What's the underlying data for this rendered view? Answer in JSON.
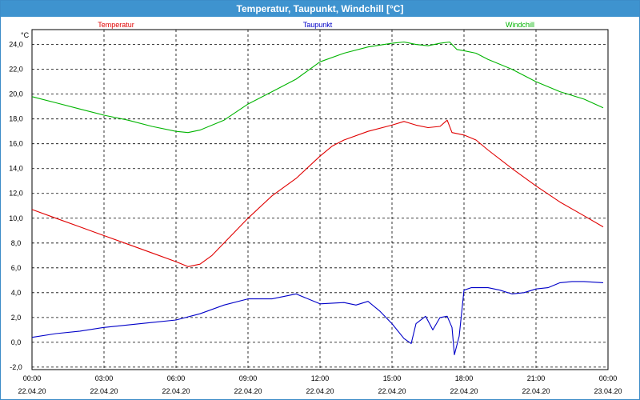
{
  "window": {
    "title": "Temperatur, Taupunkt, Windchill [°C]"
  },
  "chart_data": {
    "type": "line",
    "title": "Temperatur, Taupunkt, Windchill [°C]",
    "unit": "°C",
    "ylim": [
      -2.2,
      25.2
    ],
    "y_ticks": [
      "24,0",
      "22,0",
      "20,0",
      "18,0",
      "16,0",
      "14,0",
      "12,0",
      "10,0",
      "8,0",
      "6,0",
      "4,0",
      "2,0",
      "0,0",
      "-2,0"
    ],
    "x_ticks": [
      {
        "time": "00:00",
        "date": "22.04.20"
      },
      {
        "time": "03:00",
        "date": "22.04.20"
      },
      {
        "time": "06:00",
        "date": "22.04.20"
      },
      {
        "time": "09:00",
        "date": "22.04.20"
      },
      {
        "time": "12:00",
        "date": "22.04.20"
      },
      {
        "time": "15:00",
        "date": "22.04.20"
      },
      {
        "time": "18:00",
        "date": "22.04.20"
      },
      {
        "time": "21:00",
        "date": "22.04.20"
      },
      {
        "time": "00:00",
        "date": "23.04.20"
      }
    ],
    "grid": true,
    "legend_position": "top",
    "series": [
      {
        "name": "Temperatur",
        "color": "#e00000",
        "points": [
          [
            0,
            10.7
          ],
          [
            1,
            10.0
          ],
          [
            2,
            9.3
          ],
          [
            3,
            8.6
          ],
          [
            4,
            7.9
          ],
          [
            5,
            7.2
          ],
          [
            6,
            6.5
          ],
          [
            6.5,
            6.1
          ],
          [
            7,
            6.3
          ],
          [
            7.5,
            7.0
          ],
          [
            8,
            8.0
          ],
          [
            9,
            10.0
          ],
          [
            10,
            11.8
          ],
          [
            11,
            13.2
          ],
          [
            12,
            15.0
          ],
          [
            12.5,
            15.8
          ],
          [
            13,
            16.3
          ],
          [
            14,
            17.0
          ],
          [
            15,
            17.5
          ],
          [
            15.5,
            17.8
          ],
          [
            16,
            17.5
          ],
          [
            16.5,
            17.3
          ],
          [
            17,
            17.4
          ],
          [
            17.3,
            17.9
          ],
          [
            17.5,
            16.9
          ],
          [
            18,
            16.7
          ],
          [
            18.5,
            16.3
          ],
          [
            19,
            15.5
          ],
          [
            20,
            14.0
          ],
          [
            21,
            12.6
          ],
          [
            22,
            11.3
          ],
          [
            23,
            10.2
          ],
          [
            23.8,
            9.3
          ]
        ]
      },
      {
        "name": "Taupunkt",
        "color": "#0000c8",
        "points": [
          [
            0,
            0.4
          ],
          [
            1,
            0.7
          ],
          [
            2,
            0.9
          ],
          [
            3,
            1.2
          ],
          [
            4,
            1.4
          ],
          [
            5,
            1.6
          ],
          [
            6,
            1.8
          ],
          [
            7,
            2.3
          ],
          [
            8,
            3.0
          ],
          [
            9,
            3.5
          ],
          [
            10,
            3.5
          ],
          [
            11,
            3.9
          ],
          [
            12,
            3.1
          ],
          [
            13,
            3.2
          ],
          [
            13.5,
            3.0
          ],
          [
            14,
            3.3
          ],
          [
            14.5,
            2.5
          ],
          [
            15,
            1.5
          ],
          [
            15.5,
            0.3
          ],
          [
            15.8,
            -0.1
          ],
          [
            16,
            1.5
          ],
          [
            16.4,
            2.1
          ],
          [
            16.7,
            1.0
          ],
          [
            17,
            2.0
          ],
          [
            17.3,
            2.1
          ],
          [
            17.5,
            1.2
          ],
          [
            17.6,
            -1.0
          ],
          [
            17.8,
            0.5
          ],
          [
            18,
            4.2
          ],
          [
            18.3,
            4.4
          ],
          [
            19,
            4.4
          ],
          [
            19.5,
            4.2
          ],
          [
            20,
            3.9
          ],
          [
            20.5,
            4.0
          ],
          [
            21,
            4.3
          ],
          [
            21.5,
            4.4
          ],
          [
            22,
            4.8
          ],
          [
            22.5,
            4.9
          ],
          [
            23,
            4.9
          ],
          [
            23.8,
            4.8
          ]
        ]
      },
      {
        "name": "Windchill",
        "color": "#00b400",
        "points": [
          [
            0,
            19.8
          ],
          [
            1,
            19.3
          ],
          [
            2,
            18.8
          ],
          [
            3,
            18.3
          ],
          [
            4,
            17.9
          ],
          [
            5,
            17.4
          ],
          [
            6,
            17.0
          ],
          [
            6.5,
            16.9
          ],
          [
            7,
            17.1
          ],
          [
            8,
            17.9
          ],
          [
            9,
            19.2
          ],
          [
            10,
            20.2
          ],
          [
            11,
            21.2
          ],
          [
            12,
            22.6
          ],
          [
            13,
            23.3
          ],
          [
            14,
            23.8
          ],
          [
            15,
            24.1
          ],
          [
            15.5,
            24.2
          ],
          [
            16,
            24.0
          ],
          [
            16.5,
            23.9
          ],
          [
            17,
            24.1
          ],
          [
            17.4,
            24.2
          ],
          [
            17.7,
            23.6
          ],
          [
            18,
            23.5
          ],
          [
            18.5,
            23.3
          ],
          [
            19,
            22.8
          ],
          [
            20,
            22.0
          ],
          [
            21,
            21.0
          ],
          [
            22,
            20.2
          ],
          [
            23,
            19.6
          ],
          [
            23.8,
            18.9
          ]
        ]
      }
    ]
  }
}
